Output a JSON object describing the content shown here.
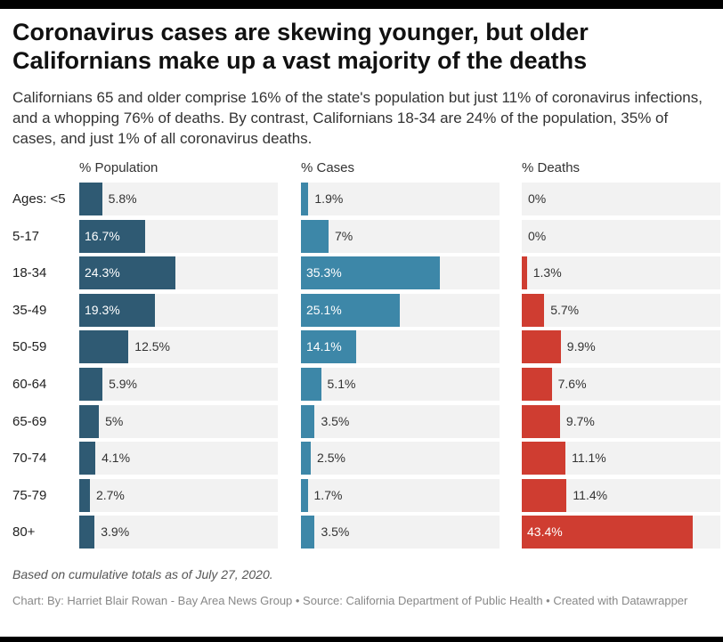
{
  "title": "Coronavirus cases are skewing younger, but older Californians make up a vast majority of the deaths",
  "subtitle": "Californians 65 and older comprise 16% of the state's population but just 11% of coronavirus infections, and a whopping 76% of deaths. By contrast, Californians 18-34 are 24% of the population, 35% of cases, and just 1% of all coronavirus deaths.",
  "footnote": "Based on cumulative totals as of July 27, 2020.",
  "credit": "Chart: By: Harriet Blair Rowan - Bay Area News Group • Source: California Department of Public Health • Created with Datawrapper",
  "chart_data": {
    "type": "bar",
    "orientation": "horizontal",
    "layout": "small-multiples",
    "categories": [
      "Ages: <5",
      "5-17",
      "18-34",
      "35-49",
      "50-59",
      "60-64",
      "65-69",
      "70-74",
      "75-79",
      "80+"
    ],
    "series": [
      {
        "name": "% Population",
        "color": "#2f5a73",
        "values": [
          5.8,
          16.7,
          24.3,
          19.3,
          12.5,
          5.9,
          5,
          4.1,
          2.7,
          3.9
        ],
        "labels": [
          "5.8%",
          "16.7%",
          "24.3%",
          "19.3%",
          "12.5%",
          "5.9%",
          "5%",
          "4.1%",
          "2.7%",
          "3.9%"
        ]
      },
      {
        "name": "% Cases",
        "color": "#3d87a8",
        "values": [
          1.9,
          7,
          35.3,
          25.1,
          14.1,
          5.1,
          3.5,
          2.5,
          1.7,
          3.5
        ],
        "labels": [
          "1.9%",
          "7%",
          "35.3%",
          "25.1%",
          "14.1%",
          "5.1%",
          "3.5%",
          "2.5%",
          "1.7%",
          "3.5%"
        ]
      },
      {
        "name": "% Deaths",
        "color": "#cf3d31",
        "values": [
          0,
          0,
          1.3,
          5.7,
          9.9,
          7.6,
          9.7,
          11.1,
          11.4,
          43.4
        ],
        "labels": [
          "0%",
          "0%",
          "1.3%",
          "5.7%",
          "9.9%",
          "7.6%",
          "9.7%",
          "11.1%",
          "11.4%",
          "43.4%"
        ]
      }
    ],
    "xlim": [
      0,
      43.4
    ],
    "grid": false,
    "legend": "none"
  }
}
